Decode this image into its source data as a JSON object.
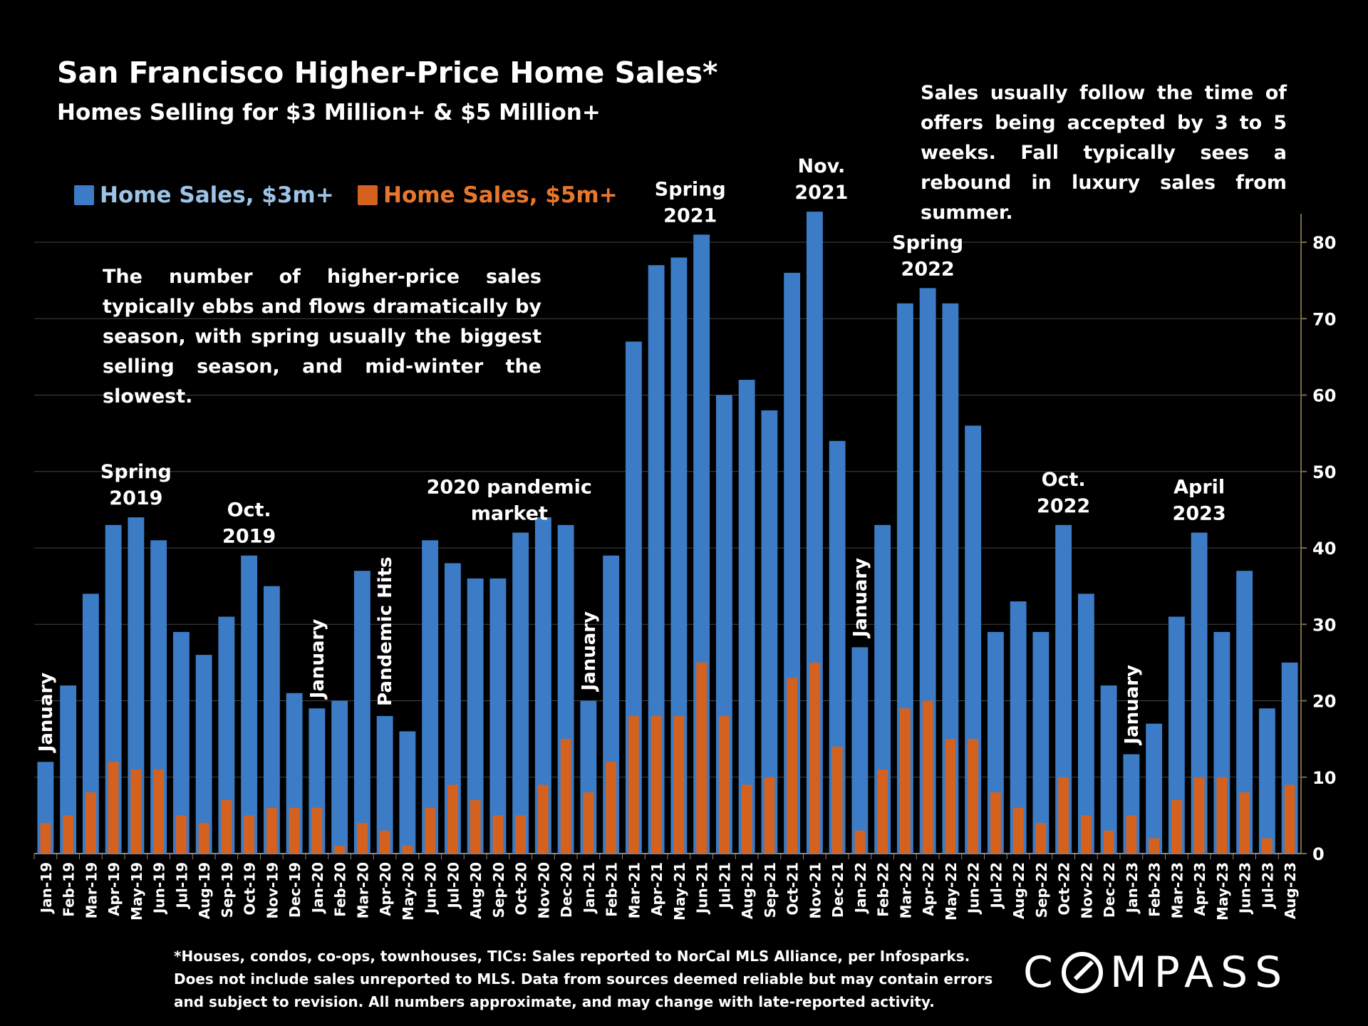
{
  "title": "San Francisco Higher-Price Home Sales*",
  "subtitle": "Homes Selling for $3 Million+ & $5 Million+",
  "note_left": "The number of higher-price sales typically ebbs and flows dramatically by season, with spring usually the biggest selling season, and mid-winter the slowest.",
  "note_right": "Sales usually follow the time of offers being accepted by 3 to 5 weeks. Fall typically sees a rebound in luxury sales from summer.",
  "footnote": [
    "*Houses, condos, co-ops, townhouses, TICs:  Sales reported to NorCal MLS Alliance, per Infosparks.",
    "Does not include sales unreported to MLS. Data from sources deemed reliable but may contain errors",
    "and subject to revision.  All numbers approximate, and may change with late-reported activity."
  ],
  "logo": "COMPASS",
  "colors": {
    "s3m": "#3C7CC6",
    "s5m": "#D4621E",
    "legend3m": "#9DC3E6",
    "grid": "#444444",
    "axis": "#7A6A4A"
  },
  "chart_data": {
    "type": "bar",
    "ylim": [
      0,
      80
    ],
    "yticks": [
      "0",
      "10",
      "20",
      "30",
      "40",
      "50",
      "60",
      "70",
      "80"
    ],
    "categories": [
      "Jan-19",
      "Feb-19",
      "Mar-19",
      "Apr-19",
      "May-19",
      "Jun-19",
      "Jul-19",
      "Aug-19",
      "Sep-19",
      "Oct-19",
      "Nov-19",
      "Dec-19",
      "Jan-20",
      "Feb-20",
      "Mar-20",
      "Apr-20",
      "May-20",
      "Jun-20",
      "Jul-20",
      "Aug-20",
      "Sep-20",
      "Oct-20",
      "Nov-20",
      "Dec-20",
      "Jan-21",
      "Feb-21",
      "Mar-21",
      "Apr-21",
      "May-21",
      "Jun-21",
      "Jul-21",
      "Aug-21",
      "Sep-21",
      "Oct-21",
      "Nov-21",
      "Dec-21",
      "Jan-22",
      "Feb-22",
      "Mar-22",
      "Apr-22",
      "May-22",
      "Jun-22",
      "Jul-22",
      "Aug-22",
      "Sep-22",
      "Oct-22",
      "Nov-22",
      "Dec-22",
      "Jan-23",
      "Feb-23",
      "Mar-23",
      "Apr-23",
      "May-23",
      "Jun-23",
      "Jul-23",
      "Aug-23"
    ],
    "series": [
      {
        "name": "Home Sales, $3m+",
        "values": [
          12,
          22,
          34,
          43,
          44,
          41,
          29,
          26,
          31,
          39,
          35,
          21,
          19,
          20,
          37,
          18,
          16,
          41,
          38,
          36,
          36,
          42,
          44,
          43,
          20,
          39,
          67,
          77,
          78,
          81,
          60,
          62,
          58,
          76,
          84,
          54,
          27,
          43,
          72,
          74,
          72,
          56,
          29,
          33,
          29,
          43,
          34,
          22,
          13,
          17,
          31,
          42,
          29,
          37,
          19,
          25
        ]
      },
      {
        "name": "Home Sales, $5m+",
        "values": [
          4,
          5,
          8,
          12,
          11,
          11,
          5,
          4,
          7,
          5,
          6,
          6,
          6,
          1,
          4,
          3,
          1,
          6,
          9,
          7,
          5,
          5,
          9,
          15,
          8,
          12,
          18,
          18,
          18,
          25,
          18,
          9,
          10,
          23,
          25,
          14,
          3,
          11,
          19,
          20,
          15,
          15,
          8,
          6,
          4,
          10,
          5,
          3,
          5,
          2,
          7,
          10,
          10,
          8,
          2,
          9
        ]
      }
    ],
    "annotations": [
      {
        "idx": 0,
        "lines": [
          "January"
        ],
        "vertical": true
      },
      {
        "idx": 4,
        "lines": [
          "Spring",
          "2019"
        ]
      },
      {
        "idx": 9,
        "lines": [
          "Oct.",
          "2019"
        ]
      },
      {
        "idx": 12,
        "lines": [
          "January"
        ],
        "vertical": true
      },
      {
        "idx": 15,
        "lines": [
          "Pandemic Hits"
        ],
        "vertical": true
      },
      {
        "idx": 20.5,
        "lines": [
          "2020 pandemic",
          "market"
        ]
      },
      {
        "idx": 24,
        "lines": [
          "January"
        ],
        "vertical": true
      },
      {
        "idx": 28.5,
        "lines": [
          "Spring",
          "2021"
        ]
      },
      {
        "idx": 34.3,
        "lines": [
          "Nov.",
          "2021"
        ]
      },
      {
        "idx": 36,
        "lines": [
          "January"
        ],
        "vertical": true
      },
      {
        "idx": 39,
        "lines": [
          "Spring",
          "2022"
        ]
      },
      {
        "idx": 45,
        "lines": [
          "Oct.",
          "2022"
        ]
      },
      {
        "idx": 48,
        "lines": [
          "January"
        ],
        "vertical": true
      },
      {
        "idx": 51,
        "lines": [
          "April",
          "2023"
        ]
      }
    ]
  }
}
